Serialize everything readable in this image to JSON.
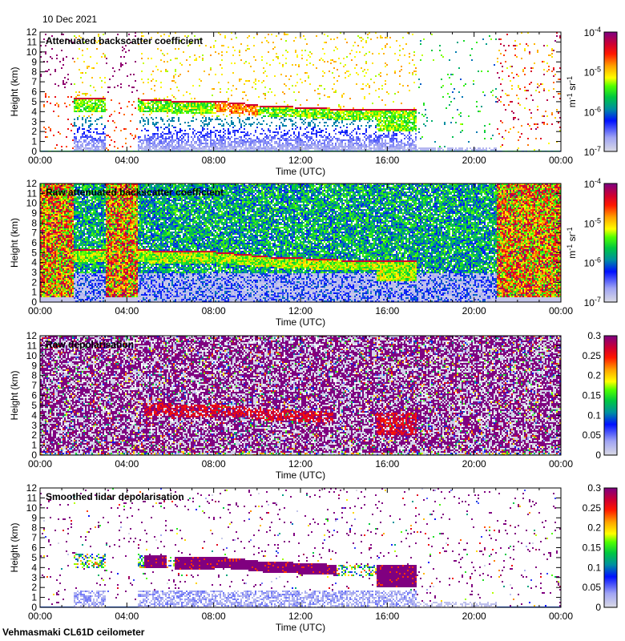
{
  "header": {
    "date": "10 Dec 2021"
  },
  "footer": {
    "instrument": "Vehmasmaki CL61D ceilometer"
  },
  "chart_data": [
    {
      "type": "heatmap",
      "title": "Attenuated backscatter coefficient",
      "xlabel": "Time (UTC)",
      "ylabel": "Height (km)",
      "xticks": [
        "00:00",
        "04:00",
        "08:00",
        "12:00",
        "16:00",
        "20:00",
        "00:00"
      ],
      "xlim_hours": [
        0,
        24
      ],
      "yticks": [
        "0",
        "1",
        "2",
        "3",
        "4",
        "5",
        "6",
        "7",
        "8",
        "9",
        "10",
        "11",
        "12"
      ],
      "ylim_km": [
        0,
        12
      ],
      "colorbar": {
        "scale": "log",
        "range": [
          1e-07,
          0.0001
        ],
        "unit": [
          "m",
          "-1",
          " sr",
          "-1"
        ],
        "ticks": [
          {
            "base": "10",
            "exp": "-7"
          },
          {
            "base": "10",
            "exp": "-6"
          },
          {
            "base": "10",
            "exp": "-5"
          },
          {
            "base": "10",
            "exp": "-4"
          }
        ]
      },
      "pattern": "attenuated"
    },
    {
      "type": "heatmap",
      "title": "Raw attenuated backscatter coefficient",
      "xlabel": "Time (UTC)",
      "ylabel": "Height (km)",
      "xticks": [
        "00:00",
        "04:00",
        "08:00",
        "12:00",
        "16:00",
        "20:00",
        "00:00"
      ],
      "xlim_hours": [
        0,
        24
      ],
      "yticks": [
        "0",
        "1",
        "2",
        "3",
        "4",
        "5",
        "6",
        "7",
        "8",
        "9",
        "10",
        "11",
        "12"
      ],
      "ylim_km": [
        0,
        12
      ],
      "colorbar": {
        "scale": "log",
        "range": [
          1e-07,
          0.0001
        ],
        "unit": [
          "m",
          "-1",
          " sr",
          "-1"
        ],
        "ticks": [
          {
            "base": "10",
            "exp": "-7"
          },
          {
            "base": "10",
            "exp": "-6"
          },
          {
            "base": "10",
            "exp": "-5"
          },
          {
            "base": "10",
            "exp": "-4"
          }
        ]
      },
      "pattern": "raw"
    },
    {
      "type": "heatmap",
      "title": "Raw depolarisation",
      "xlabel": "Time (UTC)",
      "ylabel": "Height (km)",
      "xticks": [
        "00:00",
        "04:00",
        "08:00",
        "12:00",
        "16:00",
        "20:00",
        "00:00"
      ],
      "xlim_hours": [
        0,
        24
      ],
      "yticks": [
        "0",
        "1",
        "2",
        "3",
        "4",
        "5",
        "6",
        "7",
        "8",
        "9",
        "10",
        "11",
        "12"
      ],
      "ylim_km": [
        0,
        12
      ],
      "colorbar": {
        "scale": "linear",
        "range": [
          0,
          0.3
        ],
        "ticks": [
          "0",
          "0.05",
          "0.1",
          "0.15",
          "0.2",
          "0.25",
          "0.3"
        ]
      },
      "pattern": "rawdepol"
    },
    {
      "type": "heatmap",
      "title": "Smoothed lidar depolarisation",
      "xlabel": "Time (UTC)",
      "ylabel": "Height (km)",
      "xticks": [
        "00:00",
        "04:00",
        "08:00",
        "12:00",
        "16:00",
        "20:00",
        "00:00"
      ],
      "xlim_hours": [
        0,
        24
      ],
      "yticks": [
        "0",
        "1",
        "2",
        "3",
        "4",
        "5",
        "6",
        "7",
        "8",
        "9",
        "10",
        "11",
        "12"
      ],
      "ylim_km": [
        0,
        12
      ],
      "colorbar": {
        "scale": "linear",
        "range": [
          0,
          0.3
        ],
        "ticks": [
          "0",
          "0.05",
          "0.1",
          "0.15",
          "0.2",
          "0.25",
          "0.3"
        ]
      },
      "pattern": "depol"
    }
  ]
}
